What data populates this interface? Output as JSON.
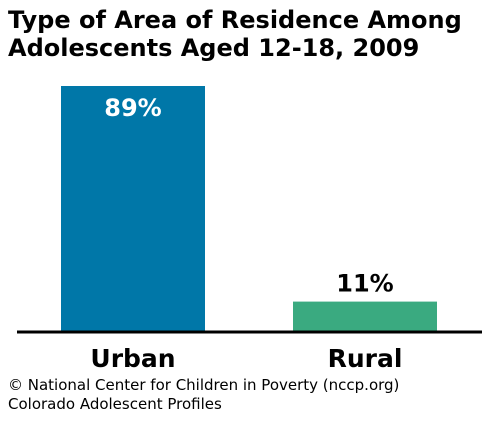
{
  "chart_data": {
    "type": "bar",
    "title_lines": [
      "Type of Area of Residence Among",
      "Adolescents Aged 12-18, 2009"
    ],
    "categories": [
      "Urban",
      "Rural"
    ],
    "values": [
      89,
      11
    ],
    "value_labels": [
      "89%",
      "11%"
    ],
    "bar_colors": [
      "#0077a8",
      "#3aaa80"
    ],
    "ylim": [
      0,
      89
    ],
    "grid": false,
    "legend": "none"
  },
  "footer": {
    "source_lines": [
      "© National Center for Children in Poverty (nccp.org)",
      "Colorado Adolescent Profiles"
    ]
  }
}
